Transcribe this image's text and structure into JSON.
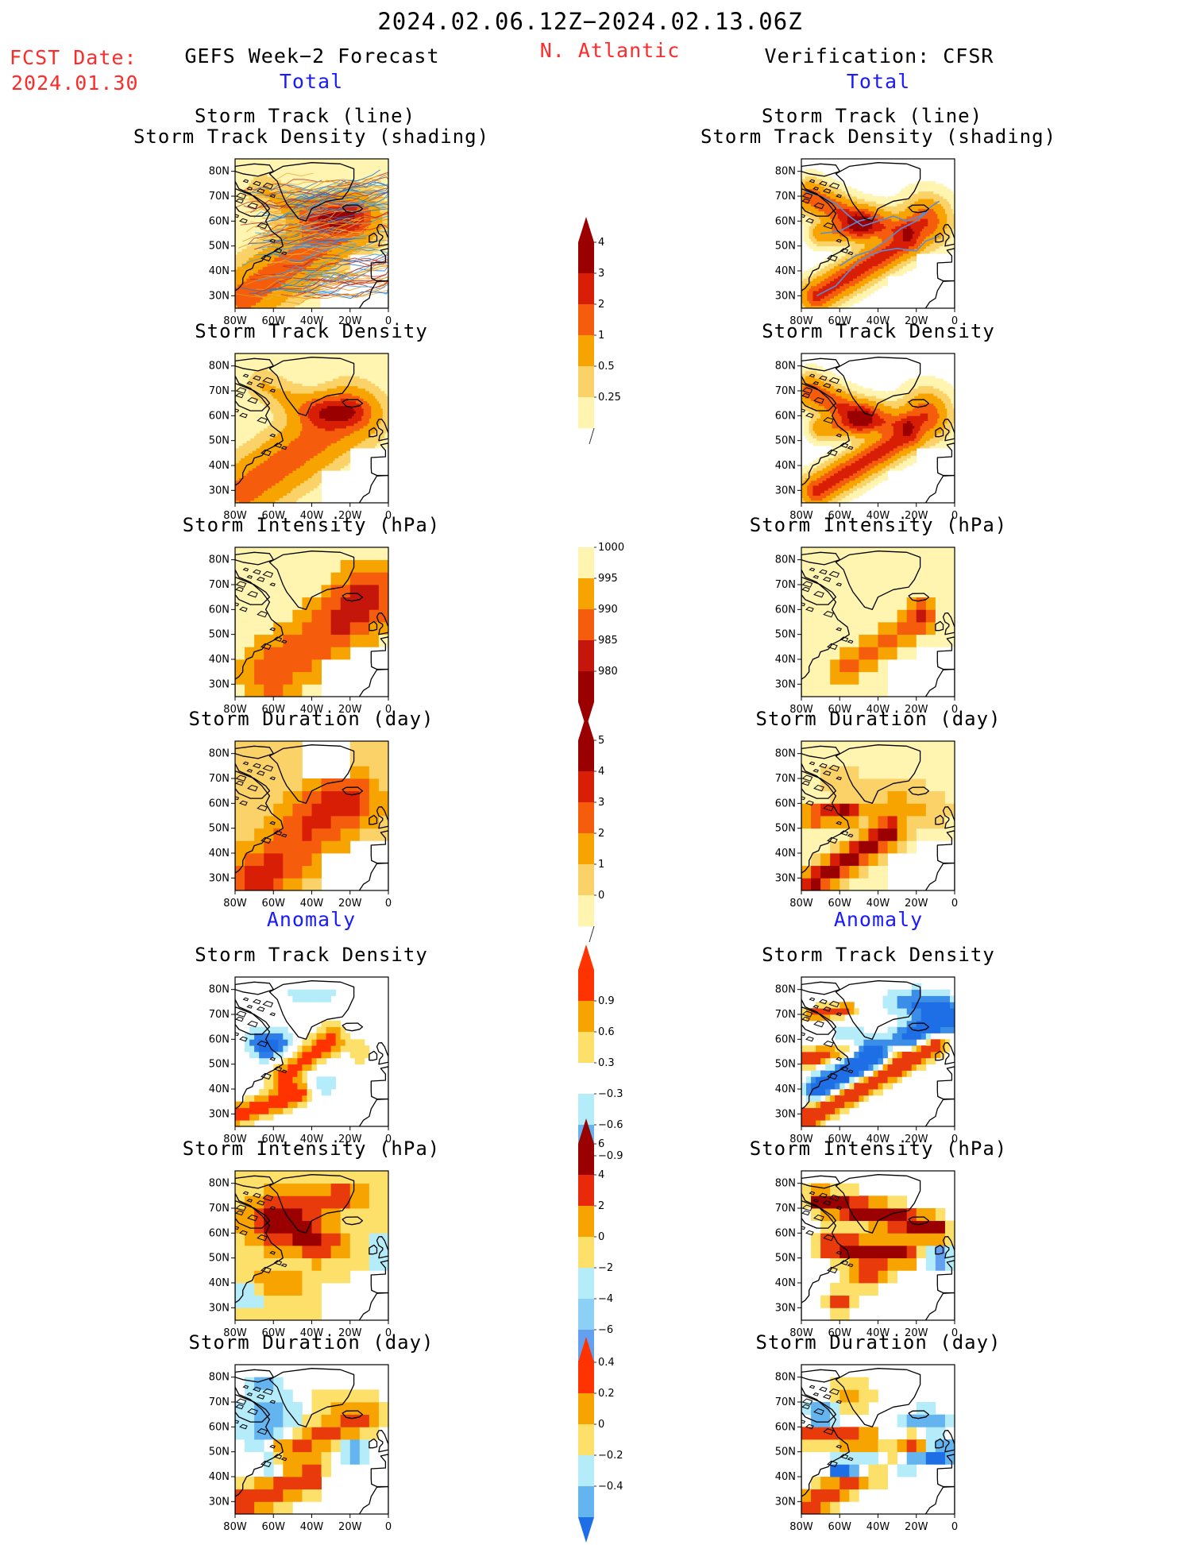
{
  "header": {
    "date_range": "2024.02.06.12Z−2024.02.13.06Z",
    "fcst_label": "FCST Date:",
    "fcst_date": "2024.01.30",
    "left_title": "GEFS Week−2 Forecast",
    "region": "N. Atlantic",
    "right_title": "Verification: CFSR",
    "total_label": "Total",
    "anomaly_label": "Anomaly"
  },
  "axes": {
    "x_ticks": [
      "80W",
      "60W",
      "40W",
      "20W",
      "0"
    ],
    "y_ticks": [
      "80N",
      "70N",
      "60N",
      "50N",
      "40N",
      "30N"
    ]
  },
  "panel_titles": {
    "track_line": "Storm Track (line)",
    "track_density_shading": "Storm Track Density (shading)",
    "track_density": "Storm Track Density",
    "intensity": "Storm Intensity (hPa)",
    "duration": "Storm Duration (day)"
  },
  "colorbars": {
    "density": {
      "labels": [
        "4",
        "3",
        "2",
        "1",
        "0.5",
        "0.25"
      ],
      "colors": [
        "#9a0000",
        "#d81e05",
        "#f55d0c",
        "#f7a400",
        "#fbd268",
        "#fff4b0"
      ]
    },
    "intensity": {
      "labels": [
        "1000",
        "995",
        "990",
        "985",
        "980"
      ],
      "colors": [
        "#fff4b0",
        "#f7a400",
        "#f55d0c",
        "#c4160a",
        "#9a0000"
      ]
    },
    "duration": {
      "labels": [
        "5",
        "4",
        "3",
        "2",
        "1",
        "0"
      ],
      "colors": [
        "#9a0000",
        "#d81e05",
        "#f55d0c",
        "#f7a400",
        "#fbd268",
        "#fff4b0"
      ]
    },
    "density_anom": {
      "labels": [
        "0.9",
        "0.6",
        "0.3",
        "−0.3",
        "−0.6",
        "−0.9"
      ],
      "colors": [
        "#ff3300",
        "#f7a400",
        "#fde06a",
        "#ffffff",
        "#b4ecfa",
        "#64b4f0",
        "#1e6ee6"
      ]
    },
    "intensity_anom": {
      "labels": [
        "6",
        "4",
        "2",
        "0",
        "−2",
        "−4",
        "−6"
      ],
      "colors": [
        "#9a0000",
        "#e82a0a",
        "#f7a400",
        "#fde06a",
        "#b4ecfa",
        "#8cd0f5",
        "#64a0f0",
        "#1e6ee6"
      ]
    },
    "duration_anom": {
      "labels": [
        "0.4",
        "0.2",
        "0",
        "−0.2",
        "−0.4"
      ],
      "colors": [
        "#ff3300",
        "#f7a400",
        "#fde06a",
        "#b4ecfa",
        "#64b4f0",
        "#1e6ee6"
      ]
    }
  },
  "chart_data": [
    {
      "type": "heatmap",
      "panel": "fcst-total-track",
      "title": "Storm Track (line) / Storm Track Density (shading)",
      "xlim": [
        -80,
        0
      ],
      "ylim": [
        25,
        85
      ],
      "note": "track lines overlaid"
    },
    {
      "type": "heatmap",
      "panel": "fcst-total-density",
      "title": "Storm Track Density",
      "xlim": [
        -80,
        0
      ],
      "ylim": [
        25,
        85
      ]
    },
    {
      "type": "heatmap",
      "panel": "fcst-total-intensity",
      "title": "Storm Intensity (hPa)",
      "xlim": [
        -80,
        0
      ],
      "ylim": [
        25,
        85
      ]
    },
    {
      "type": "heatmap",
      "panel": "fcst-total-duration",
      "title": "Storm Duration (day)",
      "xlim": [
        -80,
        0
      ],
      "ylim": [
        25,
        85
      ]
    },
    {
      "type": "heatmap",
      "panel": "fcst-anom-density",
      "title": "Storm Track Density",
      "xlim": [
        -80,
        0
      ],
      "ylim": [
        25,
        85
      ]
    },
    {
      "type": "heatmap",
      "panel": "fcst-anom-intensity",
      "title": "Storm Intensity (hPa)",
      "xlim": [
        -80,
        0
      ],
      "ylim": [
        25,
        85
      ]
    },
    {
      "type": "heatmap",
      "panel": "fcst-anom-duration",
      "title": "Storm Duration (day)",
      "xlim": [
        -80,
        0
      ],
      "ylim": [
        25,
        85
      ]
    },
    {
      "type": "heatmap",
      "panel": "cfsr-total-track",
      "title": "Storm Track (line) / Storm Track Density (shading)",
      "xlim": [
        -80,
        0
      ],
      "ylim": [
        25,
        85
      ],
      "note": "track lines overlaid"
    },
    {
      "type": "heatmap",
      "panel": "cfsr-total-density",
      "title": "Storm Track Density",
      "xlim": [
        -80,
        0
      ],
      "ylim": [
        25,
        85
      ]
    },
    {
      "type": "heatmap",
      "panel": "cfsr-total-intensity",
      "title": "Storm Intensity (hPa)",
      "xlim": [
        -80,
        0
      ],
      "ylim": [
        25,
        85
      ]
    },
    {
      "type": "heatmap",
      "panel": "cfsr-total-duration",
      "title": "Storm Duration (day)",
      "xlim": [
        -80,
        0
      ],
      "ylim": [
        25,
        85
      ]
    },
    {
      "type": "heatmap",
      "panel": "cfsr-anom-density",
      "title": "Storm Track Density",
      "xlim": [
        -80,
        0
      ],
      "ylim": [
        25,
        85
      ]
    },
    {
      "type": "heatmap",
      "panel": "cfsr-anom-intensity",
      "title": "Storm Intensity (hPa)",
      "xlim": [
        -80,
        0
      ],
      "ylim": [
        25,
        85
      ]
    },
    {
      "type": "heatmap",
      "panel": "cfsr-anom-duration",
      "title": "Storm Duration (day)",
      "xlim": [
        -80,
        0
      ],
      "ylim": [
        25,
        85
      ]
    }
  ]
}
